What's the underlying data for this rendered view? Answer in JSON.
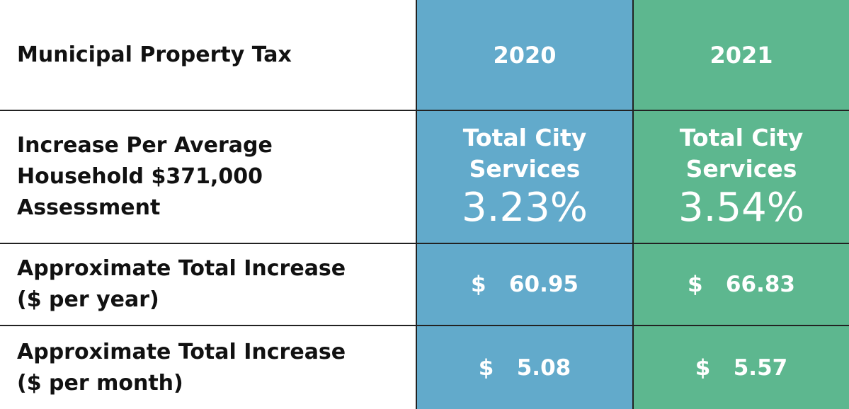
{
  "table": {
    "header": [
      "Municipal Property Tax",
      "2020",
      "2021"
    ],
    "rows": [
      {
        "label": [
          "Increase Per Average",
          "Household $371,000",
          "Assessment"
        ],
        "cells": [
          {
            "lines": [
              "Total City",
              "Services"
            ],
            "value": "3.23%"
          },
          {
            "lines": [
              "Total City",
              "Services"
            ],
            "value": "3.54%"
          }
        ]
      },
      {
        "label": [
          "Approximate Total Increase",
          "($ per year)"
        ],
        "cells": [
          {
            "value": "$   60.95"
          },
          {
            "value": "$   66.83"
          }
        ]
      },
      {
        "label": [
          "Approximate Total Increase",
          "($ per month)"
        ],
        "cells": [
          {
            "value": "$   5.08"
          },
          {
            "value": "$   5.57"
          }
        ]
      }
    ]
  }
}
